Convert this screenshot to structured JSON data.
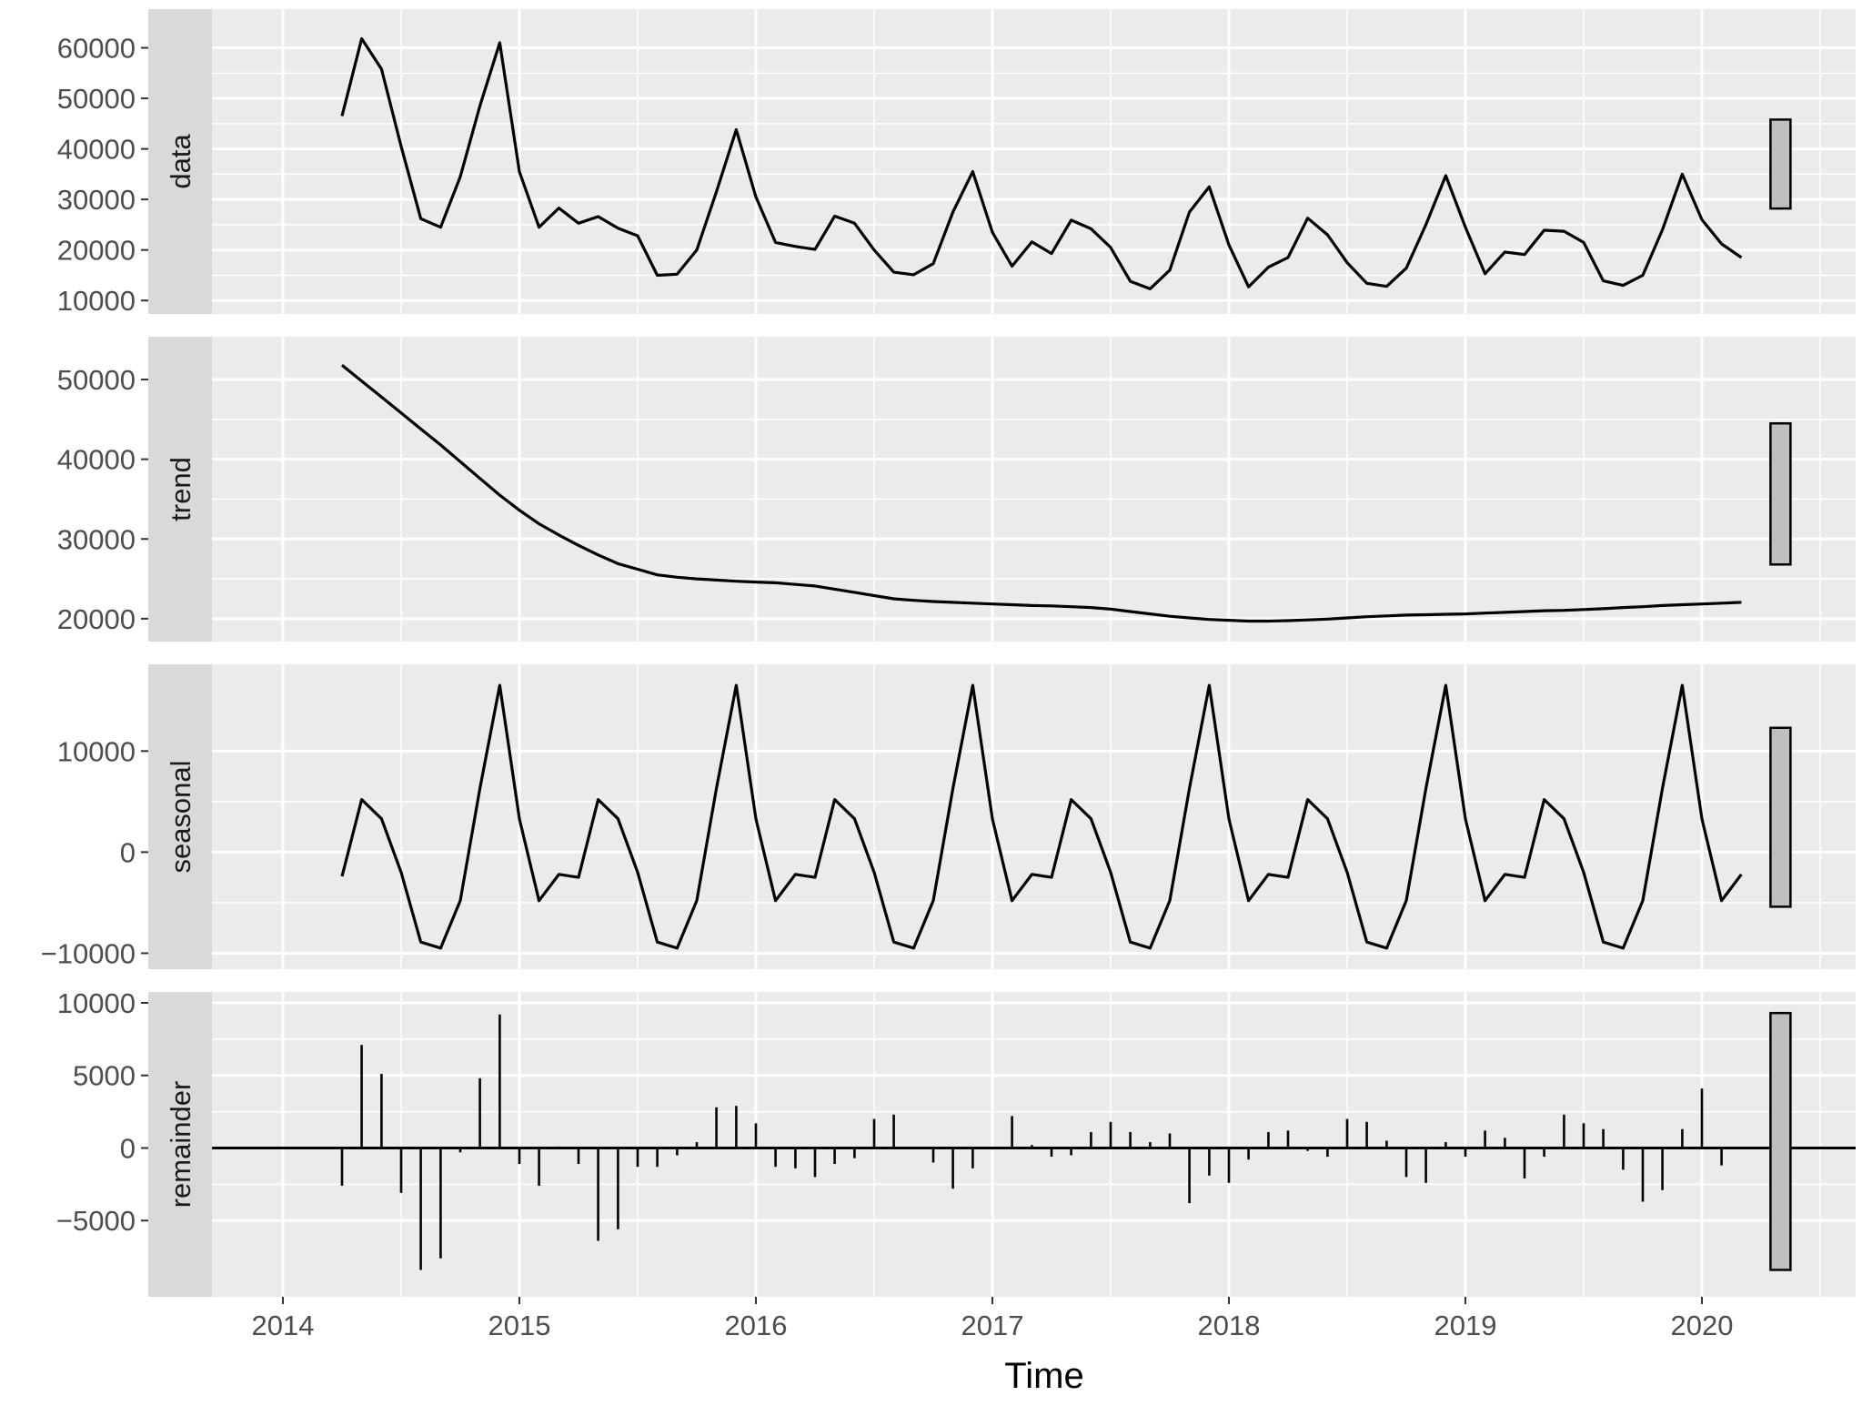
{
  "chart_data": {
    "type": "line",
    "xlabel": "Time",
    "x_ticks": [
      2014,
      2015,
      2016,
      2017,
      2018,
      2019,
      2020
    ],
    "xlim": [
      2013.7,
      2020.65
    ],
    "x": [
      2014.25,
      2014.333,
      2014.417,
      2014.5,
      2014.583,
      2014.667,
      2014.75,
      2014.833,
      2014.917,
      2015.0,
      2015.083,
      2015.167,
      2015.25,
      2015.333,
      2015.417,
      2015.5,
      2015.583,
      2015.667,
      2015.75,
      2015.833,
      2015.917,
      2016.0,
      2016.083,
      2016.167,
      2016.25,
      2016.333,
      2016.417,
      2016.5,
      2016.583,
      2016.667,
      2016.75,
      2016.833,
      2016.917,
      2017.0,
      2017.083,
      2017.167,
      2017.25,
      2017.333,
      2017.417,
      2017.5,
      2017.583,
      2017.667,
      2017.75,
      2017.833,
      2017.917,
      2018.0,
      2018.083,
      2018.167,
      2018.25,
      2018.333,
      2018.417,
      2018.5,
      2018.583,
      2018.667,
      2018.75,
      2018.833,
      2018.917,
      2019.0,
      2019.083,
      2019.167,
      2019.25,
      2019.333,
      2019.417,
      2019.5,
      2019.583,
      2019.667,
      2019.75,
      2019.833,
      2019.917,
      2020.0,
      2020.083,
      2020.167
    ],
    "panels": [
      {
        "strip": "data",
        "style": "line",
        "ylim": [
          9500,
          65500
        ],
        "y_ticks": [
          10000,
          20000,
          30000,
          40000,
          50000,
          60000
        ],
        "y_tick_labels": [
          "10000",
          "20000",
          "30000",
          "40000",
          "50000",
          "60000"
        ],
        "values": [
          46500,
          61800,
          55800,
          40500,
          26200,
          24500,
          34500,
          48500,
          61000,
          35500,
          24500,
          28300,
          25300,
          26600,
          24300,
          22800,
          15000,
          15200,
          20000,
          31500,
          43800,
          30500,
          21500,
          20700,
          20100,
          26700,
          25300,
          20000,
          15600,
          15100,
          17300,
          27500,
          35500,
          23500,
          16800,
          21600,
          19300,
          25900,
          24200,
          20500,
          13800,
          12300,
          16000,
          27500,
          32500,
          21000,
          12700,
          16600,
          18500,
          26300,
          23000,
          17500,
          13400,
          12800,
          16400,
          25000,
          34700,
          24500,
          15300,
          19600,
          19100,
          23900,
          23700,
          21500,
          13900,
          13000,
          15000,
          24000,
          35000,
          26000,
          21200,
          18500
        ],
        "range_bar": [
          28200,
          45800
        ]
      },
      {
        "strip": "trend",
        "style": "line",
        "ylim": [
          18500,
          54000
        ],
        "y_ticks": [
          20000,
          30000,
          40000,
          50000
        ],
        "y_tick_labels": [
          "20000",
          "30000",
          "40000",
          "50000"
        ],
        "values": [
          51800,
          49800,
          47800,
          45800,
          43800,
          41800,
          39700,
          37600,
          35500,
          33600,
          31900,
          30500,
          29200,
          28000,
          26900,
          26200,
          25500,
          25200,
          25000,
          24850,
          24700,
          24600,
          24500,
          24300,
          24100,
          23700,
          23300,
          22900,
          22500,
          22300,
          22150,
          22050,
          21950,
          21850,
          21750,
          21650,
          21600,
          21500,
          21400,
          21200,
          20900,
          20600,
          20300,
          20100,
          19900,
          19800,
          19700,
          19700,
          19750,
          19850,
          19950,
          20100,
          20250,
          20350,
          20450,
          20500,
          20550,
          20600,
          20700,
          20800,
          20900,
          21000,
          21050,
          21150,
          21250,
          21400,
          21500,
          21650,
          21750,
          21850,
          21950,
          22050
        ],
        "range_bar": [
          26800,
          44500
        ]
      },
      {
        "strip": "seasonal",
        "style": "line",
        "ylim": [
          -10500,
          17500
        ],
        "y_ticks": [
          -10000,
          0,
          10000
        ],
        "y_tick_labels": [
          "−10000",
          "0",
          "10000"
        ],
        "values": [
          -2400,
          5200,
          3300,
          -2000,
          -8900,
          -9500,
          -4800,
          6300,
          16500,
          3300,
          -4800,
          -2200,
          -2500,
          5200,
          3300,
          -2000,
          -8900,
          -9500,
          -4800,
          6300,
          16500,
          3300,
          -4800,
          -2200,
          -2500,
          5200,
          3300,
          -2000,
          -8900,
          -9500,
          -4800,
          6300,
          16500,
          3300,
          -4800,
          -2200,
          -2500,
          5200,
          3300,
          -2000,
          -8900,
          -9500,
          -4800,
          6300,
          16500,
          3300,
          -4800,
          -2200,
          -2500,
          5200,
          3300,
          -2000,
          -8900,
          -9500,
          -4800,
          6300,
          16500,
          3300,
          -4800,
          -2200,
          -2500,
          5200,
          3300,
          -2000,
          -8900,
          -9500,
          -4800,
          6300,
          16500,
          3300,
          -4800,
          -2200
        ],
        "range_bar": [
          -5400,
          12300
        ]
      },
      {
        "strip": "remainder",
        "style": "bar",
        "ylim": [
          -9500,
          10000
        ],
        "y_ticks": [
          -5000,
          0,
          5000,
          10000
        ],
        "y_tick_labels": [
          "−5000",
          "0",
          "5000",
          "10000"
        ],
        "values": [
          -2600,
          7100,
          5100,
          -3100,
          -8400,
          -7600,
          -300,
          4800,
          9200,
          -1100,
          -2600,
          100,
          -1100,
          -6400,
          -5600,
          -1300,
          -1300,
          -500,
          400,
          2800,
          2900,
          1700,
          -1300,
          -1400,
          -2000,
          -1100,
          -700,
          2000,
          2300,
          0,
          -1000,
          -2800,
          -1400,
          -100,
          2200,
          200,
          -600,
          -500,
          1100,
          1800,
          1100,
          400,
          1000,
          -3800,
          -1900,
          -2400,
          -800,
          1100,
          1200,
          -200,
          -600,
          2000,
          1800,
          500,
          -2000,
          -2400,
          400,
          -600,
          1200,
          700,
          -2100,
          -600,
          2300,
          1700,
          1300,
          -1500,
          -3700,
          -2900,
          1300,
          4100,
          -1200,
          0
        ],
        "range_bar": [
          -8400,
          9300
        ]
      }
    ]
  }
}
